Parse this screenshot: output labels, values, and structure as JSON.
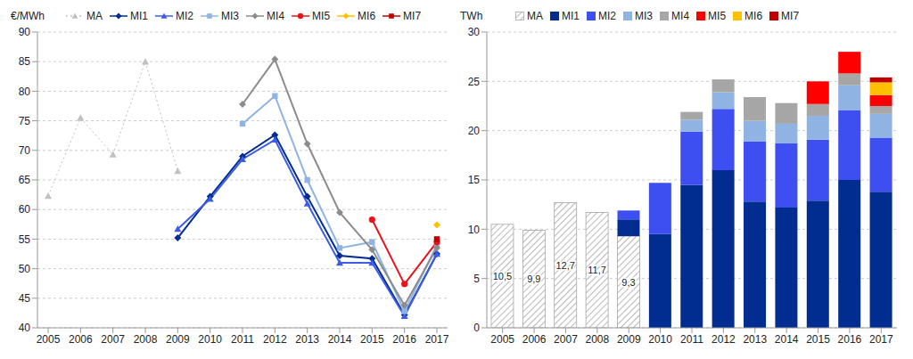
{
  "chart_data": [
    {
      "type": "line",
      "y_label": "€/MWh",
      "legend": "top",
      "grid": true,
      "categories": [
        "2005",
        "2006",
        "2007",
        "2008",
        "2009",
        "2010",
        "2011",
        "2012",
        "2013",
        "2014",
        "2015",
        "2016",
        "2017"
      ],
      "ylim": [
        40,
        90
      ],
      "yticks": [
        40,
        45,
        50,
        55,
        60,
        65,
        70,
        75,
        80,
        85,
        90
      ],
      "series": [
        {
          "name": "MA",
          "color": "#c0c0c0",
          "marker": "triangle",
          "line_style": "dotted",
          "values": [
            62.3,
            75.5,
            69.3,
            85,
            66.5,
            null,
            null,
            null,
            null,
            null,
            null,
            null,
            null
          ]
        },
        {
          "name": "MI1",
          "color": "#002d8f",
          "marker": "diamond",
          "line_style": "solid",
          "values": [
            null,
            null,
            null,
            null,
            55.2,
            62.2,
            69,
            72.6,
            62.2,
            52.2,
            51.7,
            42.2,
            52.5
          ]
        },
        {
          "name": "MI2",
          "color": "#3d5ce6",
          "marker": "triangle",
          "line_style": "solid",
          "values": [
            null,
            null,
            null,
            null,
            56.7,
            61.8,
            68.5,
            71.8,
            61,
            51,
            51,
            42,
            52.5
          ]
        },
        {
          "name": "MI3",
          "color": "#8fb4e3",
          "marker": "square",
          "line_style": "solid",
          "values": [
            null,
            null,
            null,
            null,
            null,
            null,
            74.5,
            79.2,
            65,
            53.5,
            54.5,
            42.8,
            54
          ]
        },
        {
          "name": "MI4",
          "color": "#8c8c8c",
          "marker": "diamond",
          "line_style": "solid",
          "values": [
            null,
            null,
            null,
            null,
            null,
            null,
            77.8,
            85.4,
            71.1,
            59.5,
            53.2,
            43.8,
            53.5
          ]
        },
        {
          "name": "MI5",
          "color": "#e8141c",
          "marker": "circle",
          "line_style": "solid",
          "values": [
            null,
            null,
            null,
            null,
            null,
            null,
            null,
            null,
            null,
            null,
            58.3,
            47.4,
            54.5
          ]
        },
        {
          "name": "MI6",
          "color": "#ffc000",
          "marker": "diamond",
          "line_style": "solid",
          "values": [
            null,
            null,
            null,
            null,
            null,
            null,
            null,
            null,
            null,
            null,
            null,
            null,
            57.4
          ]
        },
        {
          "name": "MI7",
          "color": "#c00000",
          "marker": "square",
          "line_style": "solid",
          "values": [
            null,
            null,
            null,
            null,
            null,
            null,
            null,
            null,
            null,
            null,
            null,
            null,
            55
          ]
        }
      ]
    },
    {
      "type": "bar",
      "y_label": "TWh",
      "legend": "top",
      "grid": true,
      "stacked": true,
      "categories": [
        "2005",
        "2006",
        "2007",
        "2008",
        "2009",
        "2010",
        "2011",
        "2012",
        "2013",
        "2014",
        "2015",
        "2016",
        "2017"
      ],
      "ylim": [
        0,
        30
      ],
      "yticks": [
        0,
        5,
        10,
        15,
        20,
        25,
        30
      ],
      "series": [
        {
          "name": "MA",
          "color": "#a6a6a6",
          "data_labels": true,
          "values": [
            10.5,
            9.9,
            12.7,
            11.7,
            9.3,
            null,
            null,
            null,
            null,
            null,
            null,
            null,
            null
          ],
          "value_labels": [
            "10,5",
            "9,9",
            "12,7",
            "11,7",
            "9,3",
            null,
            null,
            null,
            null,
            null,
            null,
            null,
            null
          ]
        },
        {
          "name": "MI1",
          "color": "#002d8f",
          "values": [
            null,
            null,
            null,
            null,
            1.7,
            9.5,
            14.5,
            16,
            12.8,
            12.2,
            12.9,
            15,
            13.8
          ]
        },
        {
          "name": "MI2",
          "color": "#3d4ff0",
          "values": [
            null,
            null,
            null,
            null,
            0.9,
            5.2,
            5.4,
            6.2,
            6.1,
            6.5,
            6.2,
            7.1,
            5.5
          ]
        },
        {
          "name": "MI3",
          "color": "#8fb4e3",
          "values": [
            null,
            null,
            null,
            null,
            null,
            null,
            1.2,
            1.7,
            2.1,
            2,
            2.4,
            2.5,
            2.4
          ]
        },
        {
          "name": "MI4",
          "color": "#a6a6a6",
          "values": [
            null,
            null,
            null,
            null,
            null,
            null,
            0.8,
            1.3,
            2.4,
            2.1,
            1.2,
            1.2,
            0.8
          ]
        },
        {
          "name": "MI5",
          "color": "#ff0000",
          "values": [
            null,
            null,
            null,
            null,
            null,
            null,
            null,
            null,
            null,
            null,
            2.3,
            2.2,
            1.1
          ]
        },
        {
          "name": "MI6",
          "color": "#ffc000",
          "values": [
            null,
            null,
            null,
            null,
            null,
            null,
            null,
            null,
            null,
            null,
            null,
            null,
            1.3
          ]
        },
        {
          "name": "MI7",
          "color": "#c00000",
          "values": [
            null,
            null,
            null,
            null,
            null,
            null,
            null,
            null,
            null,
            null,
            null,
            null,
            0.5
          ]
        }
      ]
    }
  ]
}
